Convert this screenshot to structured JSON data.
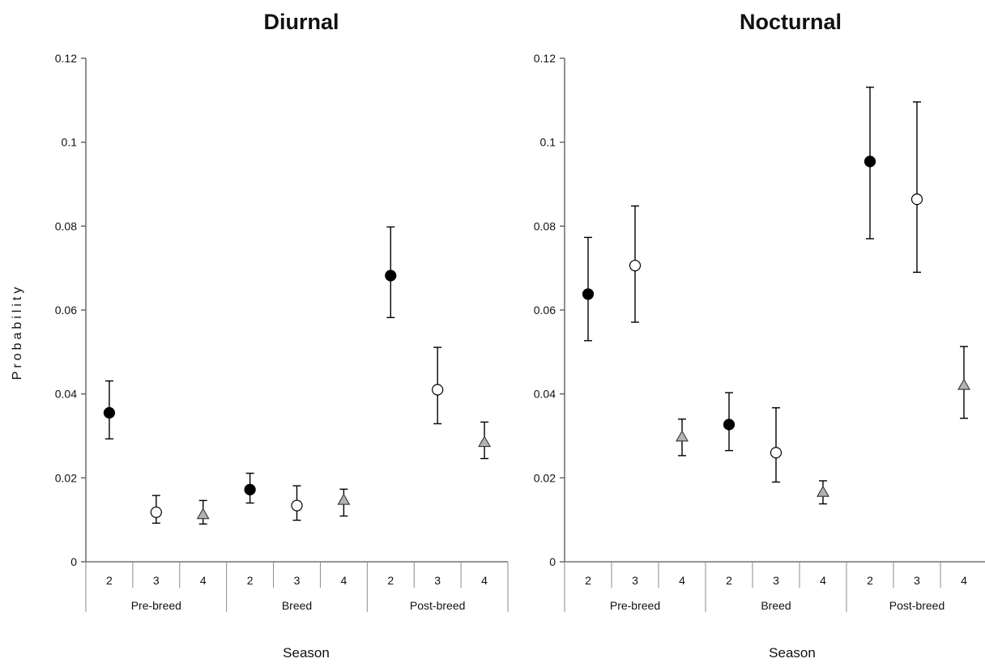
{
  "y_axis_label": "Probability",
  "x_axis_label": "Season",
  "colors": {
    "filled": "#000000",
    "open": "#ffffff",
    "triangle": "#b3b3b3",
    "axis": "#555555"
  },
  "chart_data": [
    {
      "type": "scatter",
      "title": "Diurnal",
      "xlabel": "Season",
      "ylabel": "Probability",
      "ylim": [
        0,
        0.12
      ],
      "yticks": [
        "0",
        "0.02",
        "0.04",
        "0.06",
        "0.08",
        "0.1",
        "0.12"
      ],
      "groups": [
        "Pre-breed",
        "Breed",
        "Post-breed"
      ],
      "categories": [
        "2",
        "3",
        "4"
      ],
      "grid": false,
      "points": [
        {
          "group": "Pre-breed",
          "cat": "2",
          "marker": "filled-circle",
          "value": 0.0355,
          "low": 0.0293,
          "high": 0.0431
        },
        {
          "group": "Pre-breed",
          "cat": "3",
          "marker": "open-circle",
          "value": 0.0118,
          "low": 0.0092,
          "high": 0.0158
        },
        {
          "group": "Pre-breed",
          "cat": "4",
          "marker": "gray-triangle",
          "value": 0.0113,
          "low": 0.009,
          "high": 0.0146
        },
        {
          "group": "Breed",
          "cat": "2",
          "marker": "filled-circle",
          "value": 0.0172,
          "low": 0.014,
          "high": 0.0211
        },
        {
          "group": "Breed",
          "cat": "3",
          "marker": "open-circle",
          "value": 0.0134,
          "low": 0.0099,
          "high": 0.0181
        },
        {
          "group": "Breed",
          "cat": "4",
          "marker": "gray-triangle",
          "value": 0.0147,
          "low": 0.0109,
          "high": 0.0173
        },
        {
          "group": "Post-breed",
          "cat": "2",
          "marker": "filled-circle",
          "value": 0.0682,
          "low": 0.0582,
          "high": 0.0798
        },
        {
          "group": "Post-breed",
          "cat": "3",
          "marker": "open-circle",
          "value": 0.041,
          "low": 0.0329,
          "high": 0.0511
        },
        {
          "group": "Post-breed",
          "cat": "4",
          "marker": "gray-triangle",
          "value": 0.0285,
          "low": 0.0246,
          "high": 0.0333
        }
      ]
    },
    {
      "type": "scatter",
      "title": "Nocturnal",
      "xlabel": "Season",
      "ylabel": "",
      "ylim": [
        0,
        0.12
      ],
      "yticks": [
        "0",
        "0.02",
        "0.04",
        "0.06",
        "0.08",
        "0.1",
        "0.12"
      ],
      "groups": [
        "Pre-breed",
        "Breed",
        "Post-breed"
      ],
      "categories": [
        "2",
        "3",
        "4"
      ],
      "grid": false,
      "points": [
        {
          "group": "Pre-breed",
          "cat": "2",
          "marker": "filled-circle",
          "value": 0.0638,
          "low": 0.0527,
          "high": 0.0773
        },
        {
          "group": "Pre-breed",
          "cat": "3",
          "marker": "open-circle",
          "value": 0.0706,
          "low": 0.0571,
          "high": 0.0848
        },
        {
          "group": "Pre-breed",
          "cat": "4",
          "marker": "gray-triangle",
          "value": 0.0298,
          "low": 0.0253,
          "high": 0.034
        },
        {
          "group": "Breed",
          "cat": "2",
          "marker": "filled-circle",
          "value": 0.0327,
          "low": 0.0265,
          "high": 0.0403
        },
        {
          "group": "Breed",
          "cat": "3",
          "marker": "open-circle",
          "value": 0.026,
          "low": 0.019,
          "high": 0.0367
        },
        {
          "group": "Breed",
          "cat": "4",
          "marker": "gray-triangle",
          "value": 0.0166,
          "low": 0.0138,
          "high": 0.0193
        },
        {
          "group": "Post-breed",
          "cat": "2",
          "marker": "filled-circle",
          "value": 0.0954,
          "low": 0.077,
          "high": 0.1131
        },
        {
          "group": "Post-breed",
          "cat": "3",
          "marker": "open-circle",
          "value": 0.0864,
          "low": 0.069,
          "high": 0.1096
        },
        {
          "group": "Post-breed",
          "cat": "4",
          "marker": "gray-triangle",
          "value": 0.0421,
          "low": 0.0342,
          "high": 0.0513
        }
      ]
    }
  ]
}
